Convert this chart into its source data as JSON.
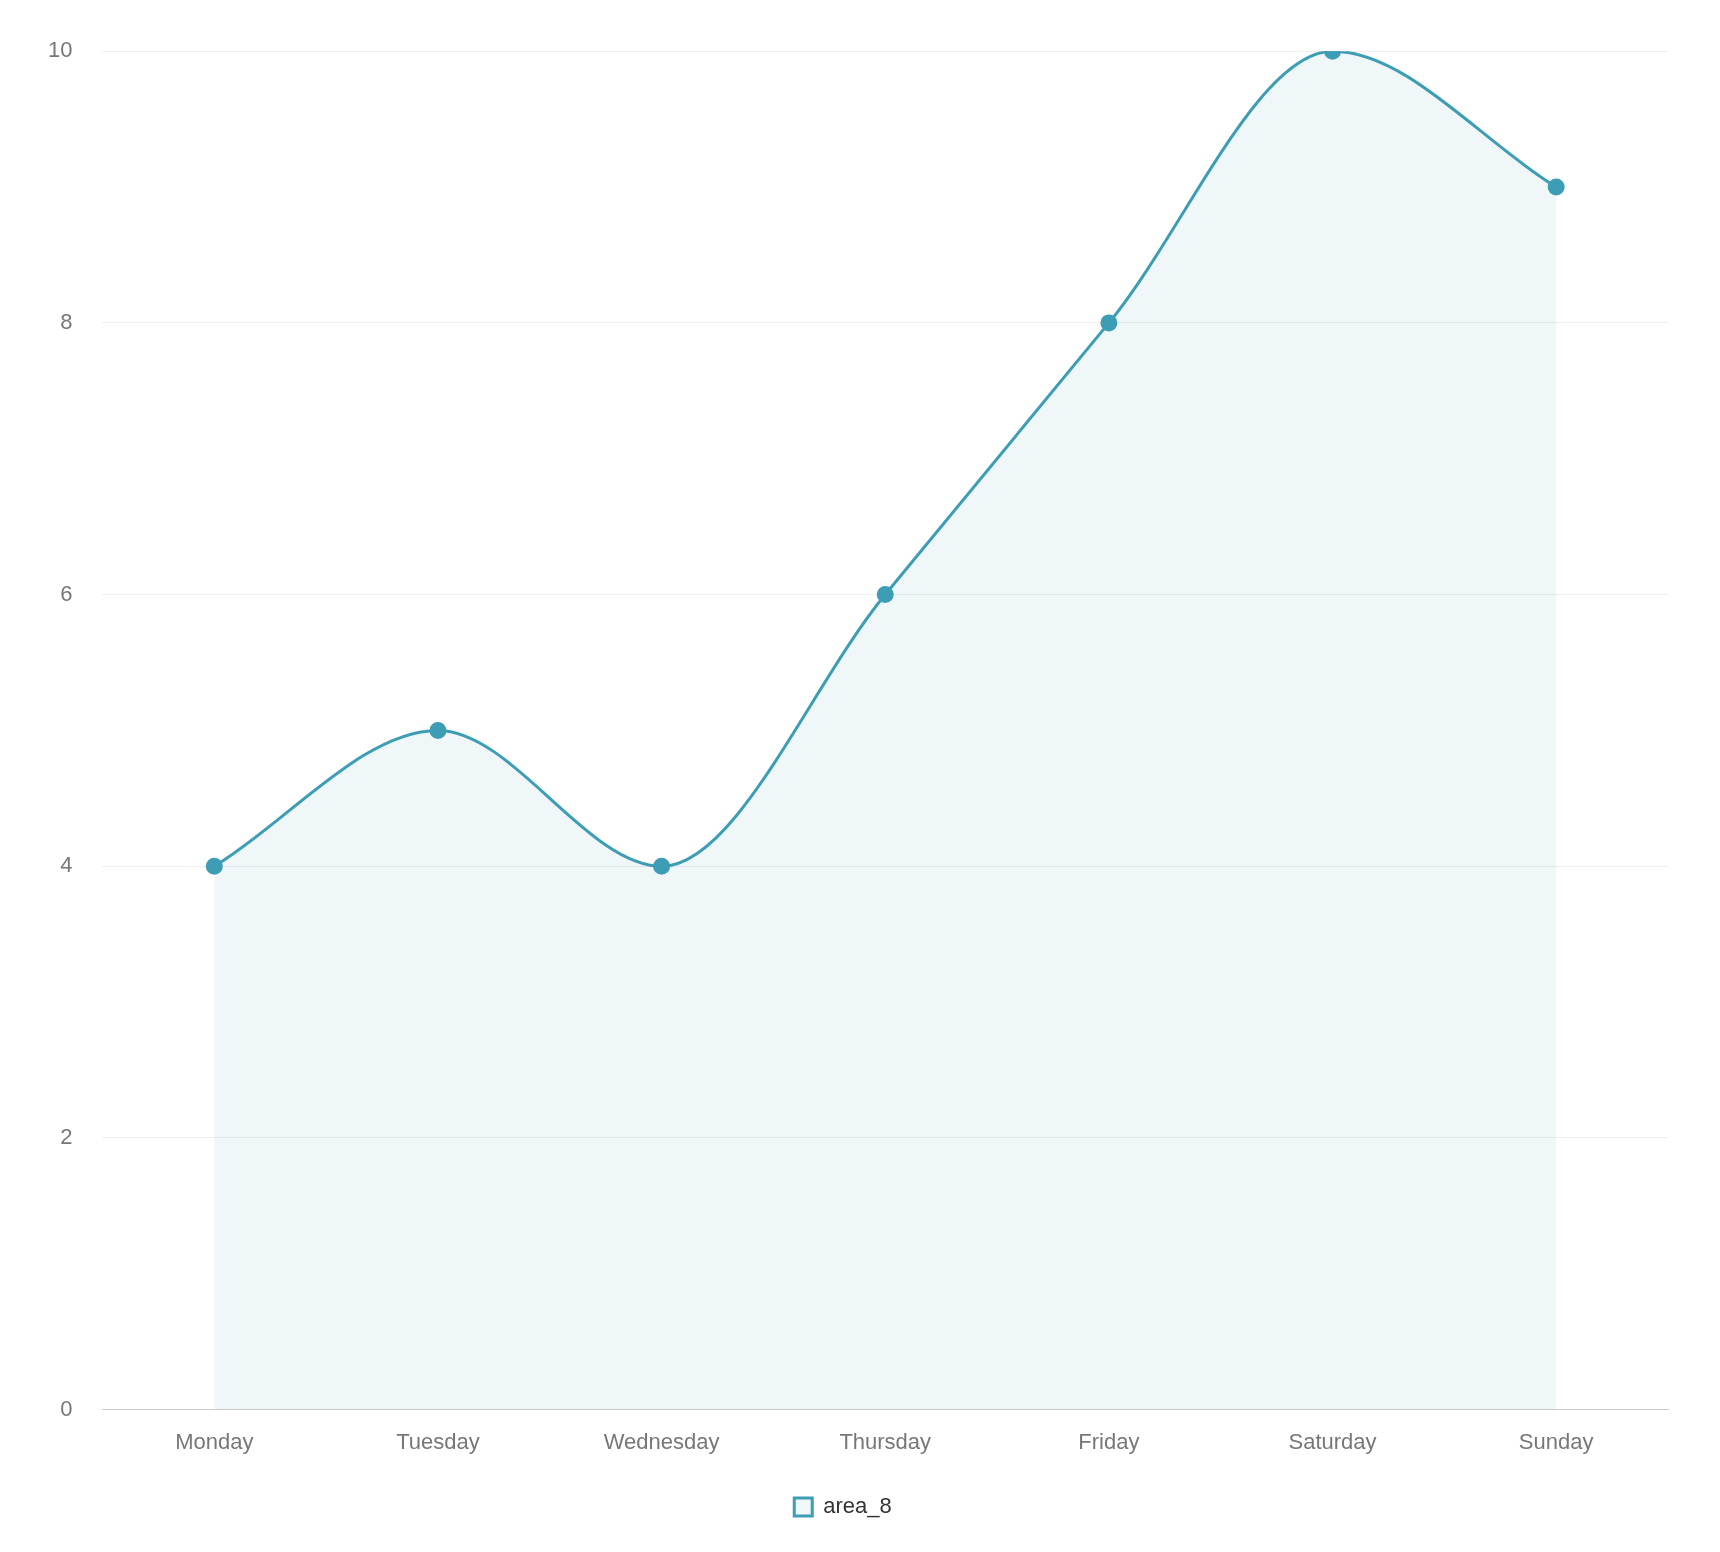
{
  "chart_data": {
    "type": "area",
    "categories": [
      "Monday",
      "Tuesday",
      "Wednesday",
      "Thursday",
      "Friday",
      "Saturday",
      "Sunday"
    ],
    "series": [
      {
        "name": "area_8",
        "color": "#3d9db5",
        "values": [
          4,
          5,
          4,
          6,
          8,
          10,
          9
        ]
      }
    ],
    "ylim": [
      0,
      10
    ],
    "yticks": [
      0,
      2,
      4,
      6,
      8,
      10
    ],
    "grid": "y",
    "legend": "bottom",
    "marker": "circle"
  }
}
